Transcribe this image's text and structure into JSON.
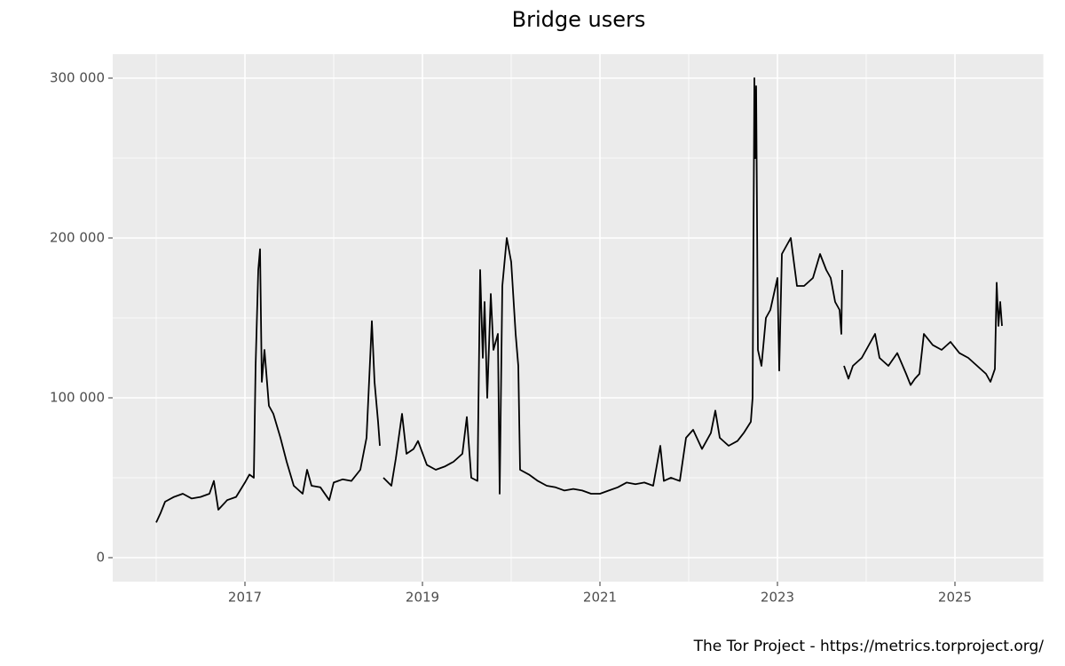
{
  "chart_data": {
    "type": "line",
    "title": "Bridge users",
    "caption": "The Tor Project - https://metrics.torproject.org/",
    "color": "#000000",
    "grid": true,
    "xlim": [
      2015.51,
      2026.0
    ],
    "xticks": [
      2017,
      2019,
      2021,
      2023,
      2025
    ],
    "ylim": [
      -15000,
      315000
    ],
    "yticks": [
      {
        "value": 0,
        "label": "0"
      },
      {
        "value": 100000,
        "label": "100 000"
      },
      {
        "value": 200000,
        "label": "200 000"
      },
      {
        "value": 300000,
        "label": "300 000"
      }
    ],
    "x": [
      2016.0,
      2016.05,
      2016.1,
      2016.2,
      2016.3,
      2016.4,
      2016.5,
      2016.6,
      2016.65,
      2016.7,
      2016.8,
      2016.9,
      2017.0,
      2017.05,
      2017.1,
      2017.12,
      2017.15,
      2017.17,
      2017.19,
      2017.22,
      2017.27,
      2017.32,
      2017.4,
      2017.47,
      2017.55,
      2017.65,
      2017.7,
      2017.75,
      2017.85,
      2017.95,
      2018.0,
      2018.1,
      2018.2,
      2018.3,
      2018.37,
      2018.43,
      2018.46,
      2018.5,
      2018.52,
      2018.54,
      2018.56,
      2018.65,
      2018.7,
      2018.77,
      2018.82,
      2018.9,
      2018.95,
      2019.05,
      2019.15,
      2019.25,
      2019.35,
      2019.45,
      2019.5,
      2019.55,
      2019.62,
      2019.65,
      2019.68,
      2019.7,
      2019.73,
      2019.77,
      2019.8,
      2019.85,
      2019.87,
      2019.9,
      2019.95,
      2020.0,
      2020.05,
      2020.08,
      2020.1,
      2020.2,
      2020.3,
      2020.4,
      2020.5,
      2020.6,
      2020.7,
      2020.8,
      2020.9,
      2021.0,
      2021.1,
      2021.2,
      2021.3,
      2021.4,
      2021.5,
      2021.6,
      2021.68,
      2021.72,
      2021.8,
      2021.9,
      2021.97,
      2022.05,
      2022.15,
      2022.25,
      2022.3,
      2022.35,
      2022.45,
      2022.55,
      2022.62,
      2022.7,
      2022.72,
      2022.74,
      2022.75,
      2022.76,
      2022.78,
      2022.82,
      2022.87,
      2022.92,
      2023.0,
      2023.02,
      2023.05,
      2023.1,
      2023.15,
      2023.22,
      2023.3,
      2023.4,
      2023.48,
      2023.55,
      2023.6,
      2023.65,
      2023.7,
      2023.72,
      2023.73,
      2023.74,
      2023.75,
      2023.8,
      2023.85,
      2023.95,
      2024.05,
      2024.1,
      2024.15,
      2024.25,
      2024.35,
      2024.45,
      2024.5,
      2024.55,
      2024.6,
      2024.65,
      2024.75,
      2024.85,
      2024.95,
      2025.05,
      2025.15,
      2025.25,
      2025.35,
      2025.4,
      2025.45,
      2025.47,
      2025.49,
      2025.51,
      2025.53
    ],
    "values": [
      22000,
      28000,
      35000,
      38000,
      40000,
      37000,
      38000,
      40000,
      48000,
      30000,
      36000,
      38000,
      47000,
      52000,
      50000,
      120000,
      180000,
      193000,
      110000,
      130000,
      95000,
      90000,
      75000,
      60000,
      45000,
      40000,
      55000,
      45000,
      44000,
      36000,
      47000,
      49000,
      48000,
      55000,
      75000,
      148000,
      110000,
      85000,
      70000,
      null,
      50000,
      45000,
      62000,
      90000,
      65000,
      68000,
      73000,
      58000,
      55000,
      57000,
      60000,
      65000,
      88000,
      50000,
      48000,
      180000,
      125000,
      160000,
      100000,
      165000,
      130000,
      140000,
      40000,
      170000,
      200000,
      185000,
      140000,
      120000,
      55000,
      52000,
      48000,
      45000,
      44000,
      42000,
      43000,
      42000,
      40000,
      40000,
      42000,
      44000,
      47000,
      46000,
      47000,
      45000,
      70000,
      48000,
      50000,
      48000,
      75000,
      80000,
      68000,
      78000,
      92000,
      75000,
      70000,
      73000,
      78000,
      85000,
      100000,
      300000,
      250000,
      295000,
      130000,
      120000,
      150000,
      155000,
      175000,
      117000,
      190000,
      195000,
      200000,
      170000,
      170000,
      175000,
      190000,
      180000,
      175000,
      160000,
      155000,
      140000,
      180000,
      null,
      120000,
      112000,
      120000,
      125000,
      135000,
      140000,
      125000,
      120000,
      128000,
      115000,
      108000,
      112000,
      115000,
      140000,
      133000,
      130000,
      135000,
      128000,
      125000,
      120000,
      115000,
      110000,
      118000,
      172000,
      145000,
      160000,
      145000
    ]
  }
}
